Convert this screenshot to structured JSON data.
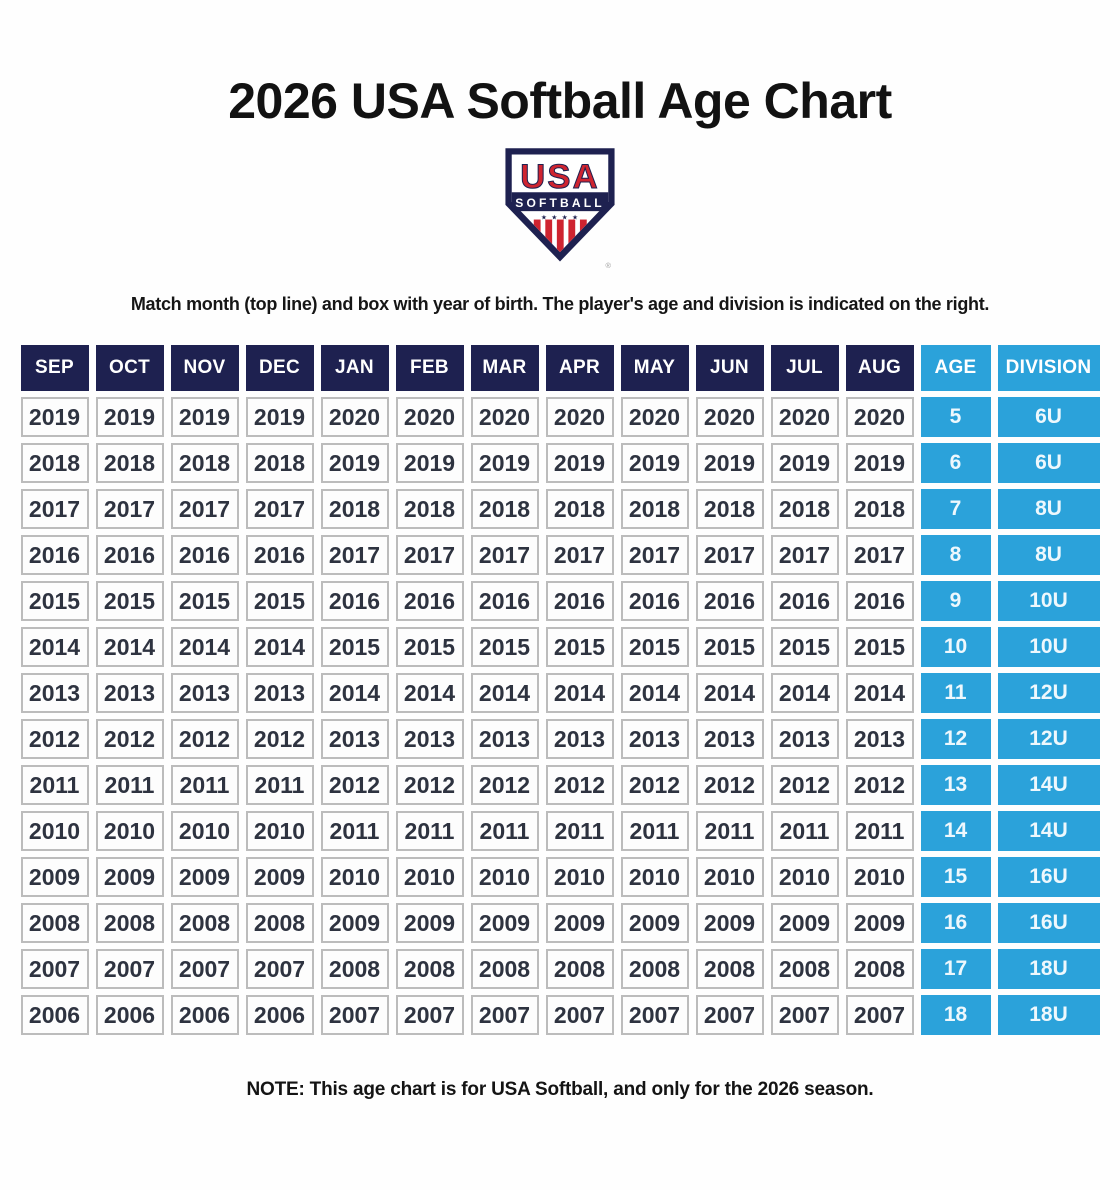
{
  "page": {
    "title": "2026 USA Softball Age Chart",
    "instruction": "Match month (top line) and box with year of birth. The player's age and division is indicated on the right.",
    "note": "NOTE: This age chart is for USA Softball, and only for the 2026 season."
  },
  "logo": {
    "name": "usa-softball-logo",
    "line1": "USA",
    "line2": "SOFTBALL",
    "stars": "★ ★ ★ ★",
    "registered": "®"
  },
  "colors": {
    "header_navy": "#1e2150",
    "accent_light_blue": "#2ba2da",
    "logo_red": "#cf2430",
    "year_cell_border": "#bcbcbc",
    "year_text": "#2e3340"
  },
  "chart_data": {
    "type": "table",
    "columns": [
      "SEP",
      "OCT",
      "NOV",
      "DEC",
      "JAN",
      "FEB",
      "MAR",
      "APR",
      "MAY",
      "JUN",
      "JUL",
      "AUG",
      "AGE",
      "DIVISION"
    ],
    "rows": [
      {
        "months": [
          "2019",
          "2019",
          "2019",
          "2019",
          "2020",
          "2020",
          "2020",
          "2020",
          "2020",
          "2020",
          "2020",
          "2020"
        ],
        "age": "5",
        "division": "6U"
      },
      {
        "months": [
          "2018",
          "2018",
          "2018",
          "2018",
          "2019",
          "2019",
          "2019",
          "2019",
          "2019",
          "2019",
          "2019",
          "2019"
        ],
        "age": "6",
        "division": "6U"
      },
      {
        "months": [
          "2017",
          "2017",
          "2017",
          "2017",
          "2018",
          "2018",
          "2018",
          "2018",
          "2018",
          "2018",
          "2018",
          "2018"
        ],
        "age": "7",
        "division": "8U"
      },
      {
        "months": [
          "2016",
          "2016",
          "2016",
          "2016",
          "2017",
          "2017",
          "2017",
          "2017",
          "2017",
          "2017",
          "2017",
          "2017"
        ],
        "age": "8",
        "division": "8U"
      },
      {
        "months": [
          "2015",
          "2015",
          "2015",
          "2015",
          "2016",
          "2016",
          "2016",
          "2016",
          "2016",
          "2016",
          "2016",
          "2016"
        ],
        "age": "9",
        "division": "10U"
      },
      {
        "months": [
          "2014",
          "2014",
          "2014",
          "2014",
          "2015",
          "2015",
          "2015",
          "2015",
          "2015",
          "2015",
          "2015",
          "2015"
        ],
        "age": "10",
        "division": "10U"
      },
      {
        "months": [
          "2013",
          "2013",
          "2013",
          "2013",
          "2014",
          "2014",
          "2014",
          "2014",
          "2014",
          "2014",
          "2014",
          "2014"
        ],
        "age": "11",
        "division": "12U"
      },
      {
        "months": [
          "2012",
          "2012",
          "2012",
          "2012",
          "2013",
          "2013",
          "2013",
          "2013",
          "2013",
          "2013",
          "2013",
          "2013"
        ],
        "age": "12",
        "division": "12U"
      },
      {
        "months": [
          "2011",
          "2011",
          "2011",
          "2011",
          "2012",
          "2012",
          "2012",
          "2012",
          "2012",
          "2012",
          "2012",
          "2012"
        ],
        "age": "13",
        "division": "14U"
      },
      {
        "months": [
          "2010",
          "2010",
          "2010",
          "2010",
          "2011",
          "2011",
          "2011",
          "2011",
          "2011",
          "2011",
          "2011",
          "2011"
        ],
        "age": "14",
        "division": "14U"
      },
      {
        "months": [
          "2009",
          "2009",
          "2009",
          "2009",
          "2010",
          "2010",
          "2010",
          "2010",
          "2010",
          "2010",
          "2010",
          "2010"
        ],
        "age": "15",
        "division": "16U"
      },
      {
        "months": [
          "2008",
          "2008",
          "2008",
          "2008",
          "2009",
          "2009",
          "2009",
          "2009",
          "2009",
          "2009",
          "2009",
          "2009"
        ],
        "age": "16",
        "division": "16U"
      },
      {
        "months": [
          "2007",
          "2007",
          "2007",
          "2007",
          "2008",
          "2008",
          "2008",
          "2008",
          "2008",
          "2008",
          "2008",
          "2008"
        ],
        "age": "17",
        "division": "18U"
      },
      {
        "months": [
          "2006",
          "2006",
          "2006",
          "2006",
          "2007",
          "2007",
          "2007",
          "2007",
          "2007",
          "2007",
          "2007",
          "2007"
        ],
        "age": "18",
        "division": "18U"
      }
    ]
  }
}
